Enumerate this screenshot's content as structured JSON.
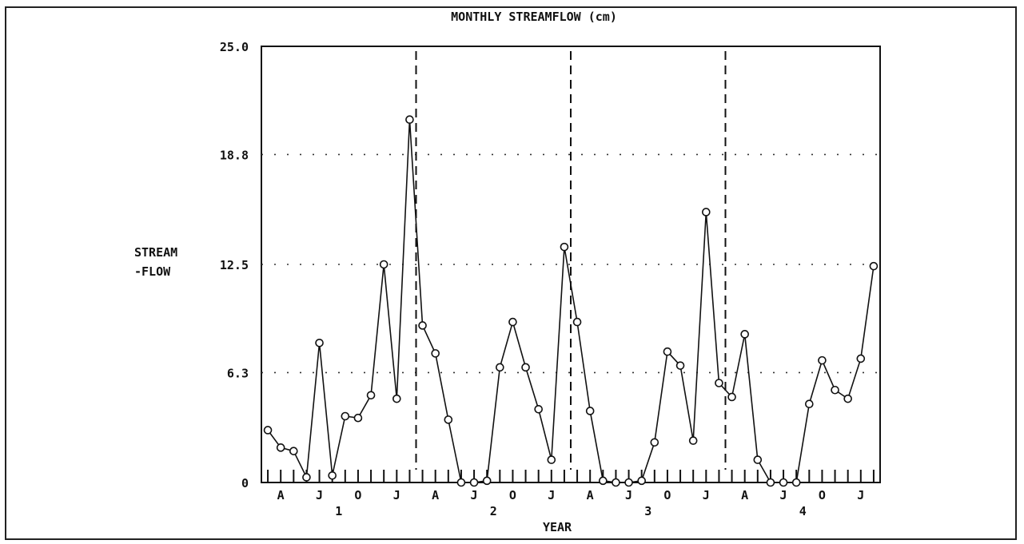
{
  "chart_data": {
    "type": "line",
    "title": "MONTHLY STREAMFLOW (cm)",
    "ylabel_line1": "STREAM",
    "ylabel_line2": "-FLOW",
    "xlabel": "YEAR",
    "ylim": [
      0,
      25.0
    ],
    "y_ticks": [
      "0",
      "6.3",
      "12.5",
      "18.8",
      "25.0"
    ],
    "y_tick_values": [
      0,
      6.3,
      12.5,
      18.8,
      25.0
    ],
    "month_tick_labels": [
      "A",
      "J",
      "O",
      "J"
    ],
    "month_tick_indices": [
      1,
      4,
      7,
      10
    ],
    "year_labels": [
      "1",
      "2",
      "3",
      "4"
    ],
    "year_label_indices": [
      5.5,
      17.5,
      29.5,
      41.5
    ],
    "year_boundaries": [
      11.5,
      23.5,
      35.5
    ],
    "grid": "dotted horizontal",
    "n_months": 48,
    "series": [
      {
        "values": [
          3.0,
          2.0,
          1.8,
          0.3,
          8.0,
          0.4,
          3.8,
          3.7,
          5.0,
          12.5,
          4.8,
          20.8,
          9.0,
          7.4,
          3.6,
          0.0,
          0.0,
          0.1,
          6.6,
          9.2,
          6.6,
          4.2,
          1.3,
          13.5,
          9.2,
          4.1,
          0.1,
          0.0,
          0.0,
          0.1,
          2.3,
          7.5,
          6.7,
          2.4,
          15.5,
          5.7,
          4.9,
          8.5,
          1.3,
          0.0,
          0.0,
          0.0,
          4.5,
          7.0,
          5.3,
          4.8,
          7.1,
          12.4
        ]
      }
    ]
  }
}
